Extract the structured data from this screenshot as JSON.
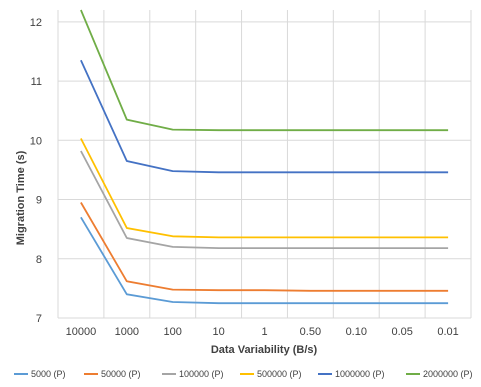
{
  "chart_data": {
    "type": "line",
    "title": "",
    "xlabel": "Data Variability (B/s)",
    "ylabel": "Migration Time (s)",
    "categories": [
      "10000",
      "1000",
      "100",
      "10",
      "1",
      "0.50",
      "0.10",
      "0.05",
      "0.01"
    ],
    "ylim": [
      7,
      12.2
    ],
    "yticks": [
      7,
      8,
      9,
      10,
      11,
      12
    ],
    "grid": true,
    "legend_position": "bottom",
    "series": [
      {
        "name": "5000 (P)",
        "color": "#5b9bd5",
        "values": [
          8.7,
          7.4,
          7.27,
          7.25,
          7.25,
          7.25,
          7.25,
          7.25,
          7.25
        ]
      },
      {
        "name": "50000 (P)",
        "color": "#ed7d31",
        "values": [
          8.95,
          7.62,
          7.48,
          7.47,
          7.47,
          7.46,
          7.46,
          7.46,
          7.46
        ]
      },
      {
        "name": "100000 (P)",
        "color": "#a5a5a5",
        "values": [
          9.82,
          8.35,
          8.2,
          8.18,
          8.18,
          8.18,
          8.18,
          8.18,
          8.18
        ]
      },
      {
        "name": "500000 (P)",
        "color": "#ffc000",
        "values": [
          10.03,
          8.52,
          8.38,
          8.36,
          8.36,
          8.36,
          8.36,
          8.36,
          8.36
        ]
      },
      {
        "name": "1000000 (P)",
        "color": "#4472c4",
        "values": [
          11.35,
          9.65,
          9.48,
          9.46,
          9.46,
          9.46,
          9.46,
          9.46,
          9.46
        ]
      },
      {
        "name": "2000000 (P)",
        "color": "#70ad47",
        "values": [
          12.2,
          10.35,
          10.18,
          10.17,
          10.17,
          10.17,
          10.17,
          10.17,
          10.17
        ]
      }
    ]
  }
}
